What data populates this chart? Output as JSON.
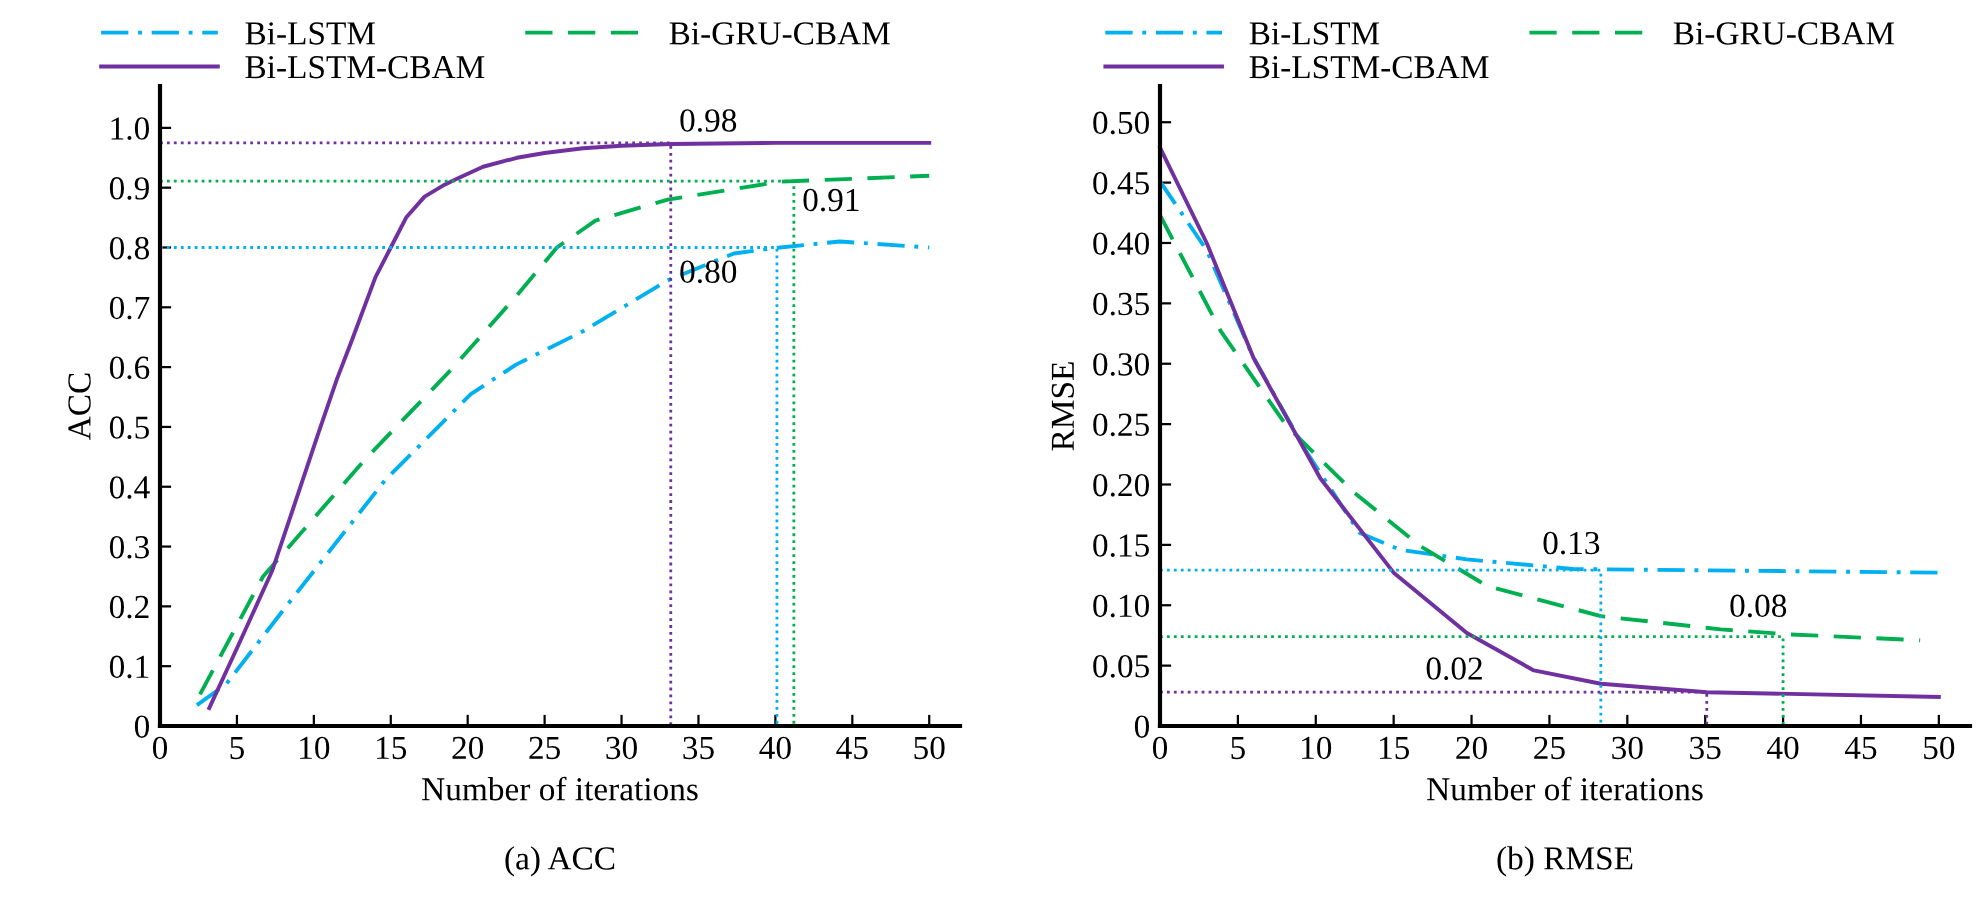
{
  "chart_data": [
    {
      "type": "line",
      "title": "(a) ACC",
      "xlabel": "Number of iterations",
      "ylabel": "ACC",
      "legend": "top",
      "grid": false,
      "marker": "none",
      "xlim": [
        0,
        52
      ],
      "xticks": [
        0,
        5,
        10,
        15,
        20,
        25,
        30,
        35,
        40,
        45,
        50
      ],
      "ylim": [
        0,
        1.07
      ],
      "yticks": [
        0,
        {
          "value": 0.1,
          "label": "0.1"
        },
        {
          "value": 0.2,
          "label": "0.2"
        },
        {
          "value": 0.3,
          "label": "0.3"
        },
        {
          "value": 0.4,
          "label": "0.4"
        },
        {
          "value": 0.5,
          "label": "0.5"
        },
        {
          "value": 0.6,
          "label": "0.6"
        },
        {
          "value": 0.7,
          "label": "0.7"
        },
        {
          "value": 0.8,
          "label": "0.8"
        },
        {
          "value": 0.9,
          "label": "0.9"
        },
        {
          "value": 1.0,
          "label": "1.0"
        }
      ],
      "series": [
        {
          "name": "Bi-LSTM",
          "color": "#00b0f0",
          "line_style": "dashdot",
          "x": [
            2.4,
            4.3,
            8.2,
            14.6,
            20.2,
            23.2,
            27.5,
            33,
            37.3,
            40.3,
            44.2,
            50
          ],
          "values": [
            0.035,
            0.07,
            0.2,
            0.41,
            0.555,
            0.605,
            0.66,
            0.745,
            0.79,
            0.8,
            0.81,
            0.8
          ]
        },
        {
          "name": "Bi-GRU-CBAM",
          "color": "#00b050",
          "line_style": "dashed",
          "x": [
            2.6,
            6.7,
            13.3,
            18.9,
            23.2,
            25.8,
            28.3,
            33,
            40.3,
            50
          ],
          "values": [
            0.053,
            0.25,
            0.445,
            0.595,
            0.72,
            0.8,
            0.845,
            0.88,
            0.91,
            0.92
          ]
        },
        {
          "name": "Bi-LSTM-CBAM",
          "color": "#7030a0",
          "line_style": "solid",
          "x": [
            3.2,
            5,
            7.3,
            9,
            10.3,
            11.5,
            12.4,
            14,
            15,
            16,
            17.2,
            18.5,
            19.3,
            21,
            23.2,
            25,
            27.5,
            30,
            33.2,
            40,
            50
          ],
          "values": [
            0.03,
            0.13,
            0.26,
            0.39,
            0.49,
            0.58,
            0.64,
            0.75,
            0.8,
            0.85,
            0.885,
            0.905,
            0.915,
            0.935,
            0.95,
            0.958,
            0.966,
            0.97,
            0.973,
            0.975,
            0.975
          ]
        },
        {
          "color": "#7030a0",
          "line_style": "dotted",
          "x": [
            0,
            33.2,
            33.2
          ],
          "values": [
            0.975,
            0.975,
            0
          ]
        },
        {
          "color": "#00b050",
          "line_style": "dotted",
          "x": [
            0,
            41.2,
            41.2
          ],
          "values": [
            0.911,
            0.911,
            0
          ]
        },
        {
          "color": "#00b0f0",
          "line_style": "dotted",
          "x": [
            0,
            40.1,
            40.1
          ],
          "values": [
            0.8,
            0.8,
            0
          ]
        }
      ],
      "annotations": [
        {
          "text": "0.98",
          "x": 33.2,
          "y": 0.973
        },
        {
          "text": "0.91",
          "x": 41.2,
          "y": 0.84
        },
        {
          "text": "0.80",
          "x": 33.2,
          "y": 0.72
        }
      ]
    },
    {
      "type": "line",
      "title": "(b) RMSE",
      "xlabel": "Number of iterations",
      "ylabel": "RMSE",
      "legend": "top",
      "grid": false,
      "marker": "none",
      "xlim": [
        0,
        52
      ],
      "xticks": [
        0,
        5,
        10,
        15,
        20,
        25,
        30,
        35,
        40,
        45,
        50
      ],
      "ylim": [
        0,
        0.53
      ],
      "yticks": [
        0,
        {
          "value": 0.05,
          "label": "0.05"
        },
        {
          "value": 0.1,
          "label": "0.10"
        },
        {
          "value": 0.15,
          "label": "0.15"
        },
        {
          "value": 0.2,
          "label": "0.20"
        },
        {
          "value": 0.25,
          "label": "0.25"
        },
        {
          "value": 0.3,
          "label": "0.30"
        },
        {
          "value": 0.35,
          "label": "0.35"
        },
        {
          "value": 0.4,
          "label": "0.40"
        },
        {
          "value": 0.45,
          "label": "0.45"
        },
        {
          "value": 0.5,
          "label": "0.50"
        }
      ],
      "series": [
        {
          "name": "Bi-LSTM",
          "color": "#00b0f0",
          "line_style": "dashdot",
          "x": [
            0,
            3,
            6,
            9.4,
            12.8,
            15.4,
            19.7,
            26.5,
            50
          ],
          "values": [
            0.451,
            0.394,
            0.305,
            0.227,
            0.16,
            0.146,
            0.138,
            0.13,
            0.127
          ]
        },
        {
          "name": "Bi-GRU-CBAM",
          "color": "#00b050",
          "line_style": "dashed",
          "x": [
            0,
            3.9,
            8.1,
            12.4,
            16.7,
            21,
            28.3,
            36,
            40.2,
            48.8
          ],
          "values": [
            0.423,
            0.327,
            0.249,
            0.194,
            0.149,
            0.116,
            0.091,
            0.08,
            0.076,
            0.071
          ]
        },
        {
          "name": "Bi-LSTM-CBAM",
          "color": "#7030a0",
          "line_style": "solid",
          "x": [
            0,
            3,
            6,
            10.3,
            15,
            19.7,
            24,
            28.3,
            35.1,
            50
          ],
          "values": [
            0.479,
            0.4,
            0.305,
            0.205,
            0.127,
            0.077,
            0.046,
            0.035,
            0.028,
            0.024
          ]
        },
        {
          "color": "#00b0f0",
          "line_style": "dotted",
          "x": [
            0,
            28.3,
            28.3
          ],
          "values": [
            0.129,
            0.129,
            0
          ]
        },
        {
          "color": "#00b050",
          "line_style": "dotted",
          "x": [
            0,
            40,
            40
          ],
          "values": [
            0.074,
            0.074,
            0
          ]
        },
        {
          "color": "#7030a0",
          "line_style": "dotted",
          "x": [
            0,
            35.1,
            35.1
          ],
          "values": [
            0.028,
            0.028,
            0
          ]
        }
      ],
      "annotations": [
        {
          "text": "0.13",
          "x": 24,
          "y": 0.132
        },
        {
          "text": "0.08",
          "x": 36,
          "y": 0.08
        },
        {
          "text": "0.02",
          "x": 16.5,
          "y": 0.028
        }
      ]
    }
  ]
}
